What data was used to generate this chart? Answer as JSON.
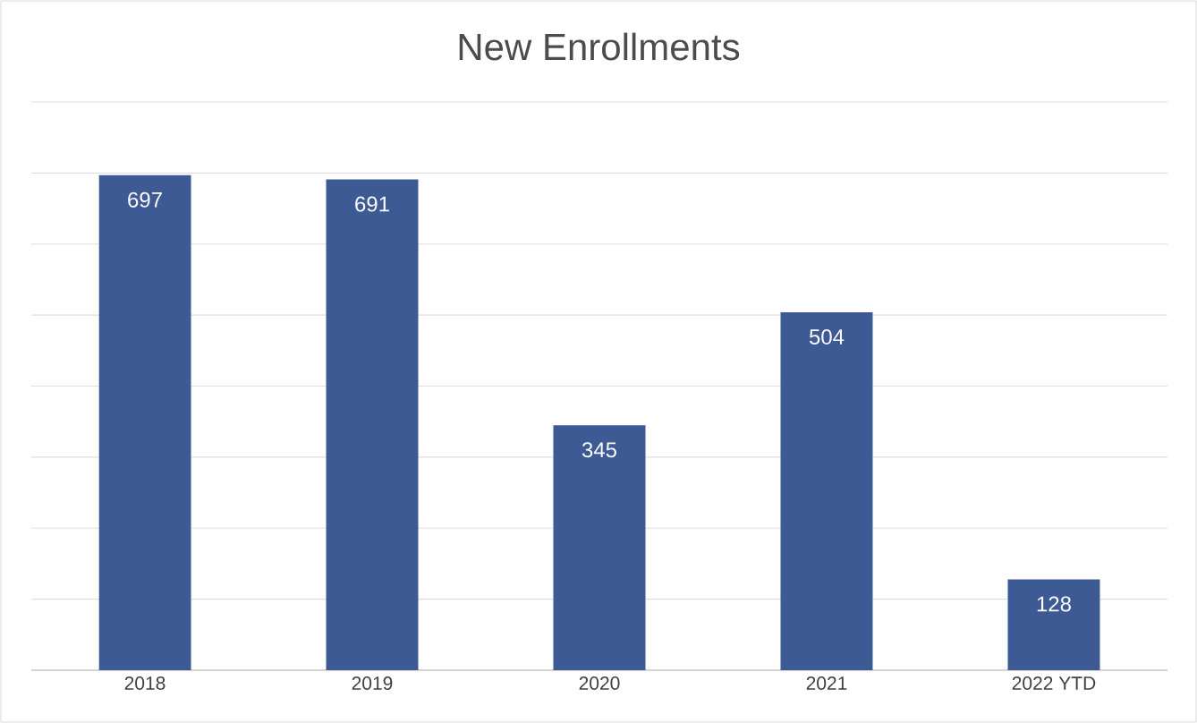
{
  "chart_data": {
    "type": "bar",
    "title": "New Enrollments",
    "categories": [
      "2018",
      "2019",
      "2020",
      "2021",
      "2022 YTD"
    ],
    "values": [
      697,
      691,
      345,
      504,
      128
    ],
    "color": "#3d5a94",
    "ylim": [
      0,
      800
    ],
    "yticks": [
      {
        "value": 0,
        "label": null
      },
      {
        "value": 100,
        "label": null
      },
      {
        "value": 200,
        "label": null
      },
      {
        "value": 300,
        "label": null
      },
      {
        "value": 400,
        "label": null
      },
      {
        "value": 500,
        "label": null
      },
      {
        "value": 600,
        "label": null
      },
      {
        "value": 700,
        "label": null
      },
      {
        "value": 800,
        "label": null
      }
    ],
    "grid": "y",
    "tick_labels": "x",
    "data_labels": true
  }
}
